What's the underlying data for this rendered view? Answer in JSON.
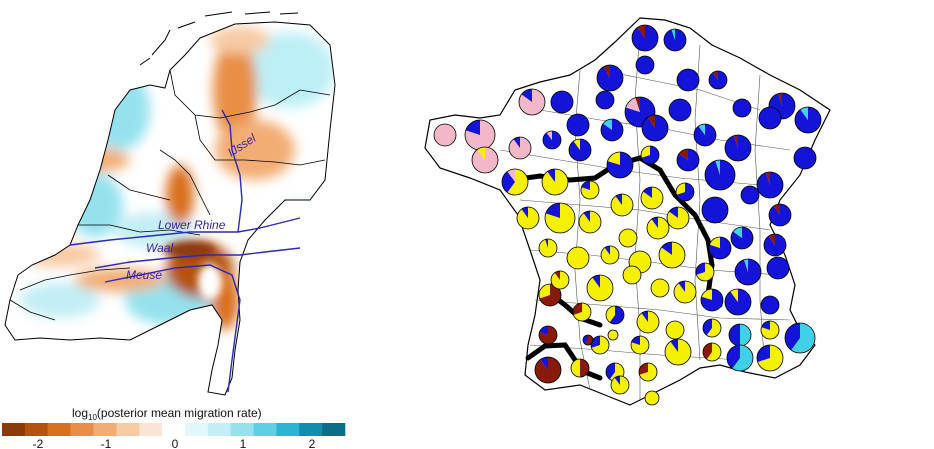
{
  "left_map": {
    "rivers": [
      {
        "name": "IJssel"
      },
      {
        "name": "Lower Rhine"
      },
      {
        "name": "Waal"
      },
      {
        "name": "Meuse"
      }
    ],
    "legend": {
      "title_prefix": "log",
      "title_sub": "10",
      "title_rest": "(posterior mean migration rate)",
      "ticks": [
        "-2",
        "-1",
        "0",
        "1",
        "2"
      ],
      "colors": [
        "#8e3a08",
        "#b6520f",
        "#d9701e",
        "#e88e45",
        "#f2ad74",
        "#f7cba4",
        "#fbe4d2",
        "#ffffff",
        "#e3f7fa",
        "#c3eef5",
        "#95e2ee",
        "#5dd0e4",
        "#2ab5d0",
        "#108fac",
        "#0b6e88"
      ]
    },
    "colors": {
      "river": "#2a2ab8",
      "orange": "#e88e45",
      "cyan": "#8fdfee"
    }
  },
  "right_map": {
    "colors": {
      "blue": "#1414d8",
      "yellow": "#f4f000",
      "pink": "#f2b8c8",
      "brown": "#8a1a08",
      "cyan": "#40d0e8",
      "barrier": "#000000"
    }
  }
}
